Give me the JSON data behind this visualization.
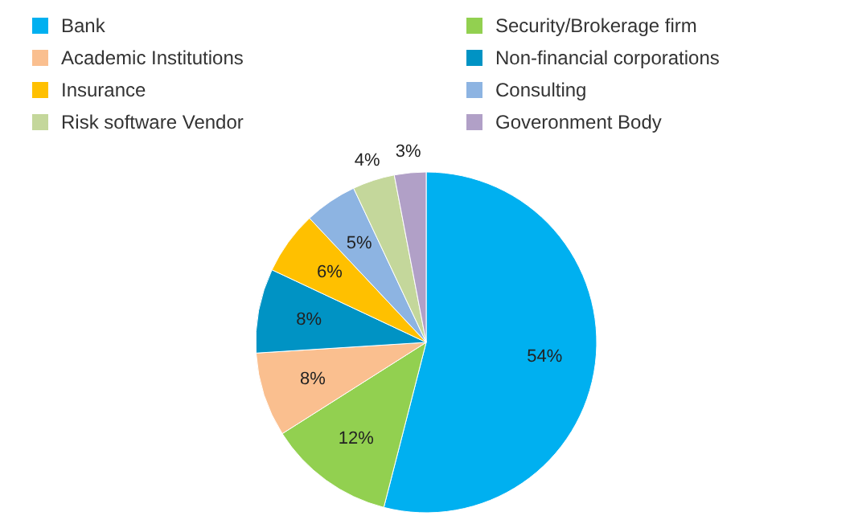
{
  "chart_data": {
    "type": "pie",
    "categories": [
      "Bank",
      "Security/Brokerage firm",
      "Academic Institutions",
      "Non-financial corporations",
      "Insurance",
      "Consulting",
      "Risk software Vendor",
      "Goveronment Body"
    ],
    "values": [
      54,
      12,
      8,
      8,
      6,
      5,
      4,
      3
    ],
    "colors": [
      "#00b0f0",
      "#92d050",
      "#fabf8f",
      "#0093c4",
      "#ffc000",
      "#8db4e2",
      "#c4d79b",
      "#b1a0c7"
    ],
    "value_labels": [
      "54%",
      "12%",
      "8%",
      "8%",
      "6%",
      "5%",
      "4%",
      "3%"
    ],
    "legend": "top"
  }
}
